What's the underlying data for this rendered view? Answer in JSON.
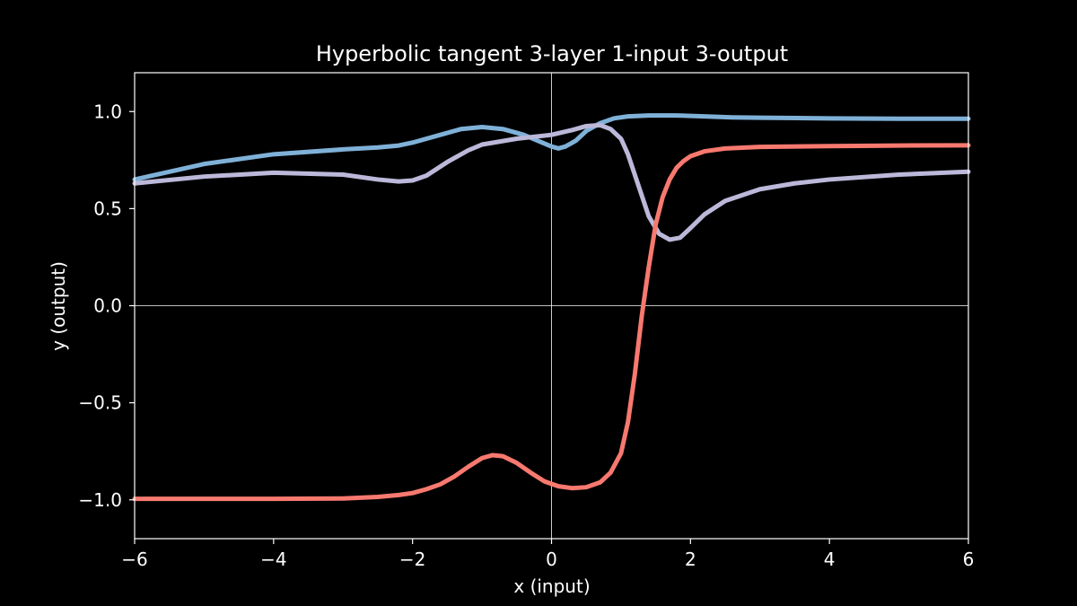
{
  "chart_data": {
    "type": "line",
    "title": "Hyperbolic tangent 3-layer 1-input 3-output",
    "xlabel": "x (input)",
    "ylabel": "y (output)",
    "xlim": [
      -6,
      6
    ],
    "ylim": [
      -1.2,
      1.2
    ],
    "x_ticks": [
      -6,
      -4,
      -2,
      0,
      2,
      4,
      6
    ],
    "x_tick_labels": [
      "−6",
      "−4",
      "−2",
      "0",
      "2",
      "4",
      "6"
    ],
    "y_ticks": [
      -1.0,
      -0.5,
      0.0,
      0.5,
      1.0
    ],
    "y_tick_labels": [
      "−1.0",
      "−0.5",
      "0.0",
      "0.5",
      "1.0"
    ],
    "reference_lines": {
      "x": 0,
      "y": 0
    },
    "grid": false,
    "legend": "none",
    "series": [
      {
        "color": "#7fb1d8",
        "x": [
          -6,
          -5,
          -4,
          -3,
          -2.5,
          -2.2,
          -2,
          -1.6,
          -1.3,
          -1,
          -0.7,
          -0.4,
          -0.2,
          0,
          0.1,
          0.2,
          0.35,
          0.5,
          0.7,
          0.9,
          1.1,
          1.4,
          1.8,
          2.2,
          2.6,
          3,
          4,
          5,
          6
        ],
        "y": [
          0.65,
          0.73,
          0.78,
          0.805,
          0.815,
          0.825,
          0.84,
          0.88,
          0.91,
          0.92,
          0.91,
          0.88,
          0.85,
          0.82,
          0.81,
          0.82,
          0.85,
          0.9,
          0.94,
          0.965,
          0.975,
          0.98,
          0.98,
          0.975,
          0.97,
          0.968,
          0.965,
          0.963,
          0.963
        ]
      },
      {
        "color": "#bcb8d9",
        "x": [
          -6,
          -5,
          -4,
          -3,
          -2.5,
          -2.2,
          -2,
          -1.8,
          -1.5,
          -1.2,
          -1,
          -0.5,
          0,
          0.3,
          0.5,
          0.7,
          0.85,
          1,
          1.1,
          1.25,
          1.4,
          1.55,
          1.7,
          1.85,
          2,
          2.2,
          2.5,
          3,
          3.5,
          4,
          5,
          6
        ],
        "y": [
          0.63,
          0.665,
          0.685,
          0.675,
          0.65,
          0.64,
          0.645,
          0.67,
          0.74,
          0.8,
          0.83,
          0.86,
          0.88,
          0.905,
          0.925,
          0.93,
          0.91,
          0.86,
          0.78,
          0.62,
          0.46,
          0.37,
          0.34,
          0.35,
          0.4,
          0.47,
          0.54,
          0.6,
          0.63,
          0.65,
          0.675,
          0.69
        ]
      },
      {
        "color": "#f7796f",
        "x": [
          -6,
          -4,
          -3,
          -2.5,
          -2.2,
          -2,
          -1.8,
          -1.6,
          -1.4,
          -1.2,
          -1,
          -0.85,
          -0.7,
          -0.5,
          -0.3,
          -0.1,
          0.1,
          0.3,
          0.5,
          0.7,
          0.85,
          1,
          1.1,
          1.2,
          1.3,
          1.4,
          1.5,
          1.6,
          1.7,
          1.8,
          1.9,
          2,
          2.2,
          2.5,
          3,
          4,
          5,
          6
        ],
        "y": [
          -0.995,
          -0.995,
          -0.993,
          -0.985,
          -0.975,
          -0.965,
          -0.945,
          -0.92,
          -0.88,
          -0.83,
          -0.785,
          -0.77,
          -0.775,
          -0.81,
          -0.86,
          -0.905,
          -0.93,
          -0.94,
          -0.935,
          -0.91,
          -0.86,
          -0.76,
          -0.6,
          -0.35,
          -0.05,
          0.2,
          0.42,
          0.56,
          0.65,
          0.71,
          0.745,
          0.77,
          0.795,
          0.81,
          0.818,
          0.822,
          0.825,
          0.826
        ]
      }
    ]
  }
}
